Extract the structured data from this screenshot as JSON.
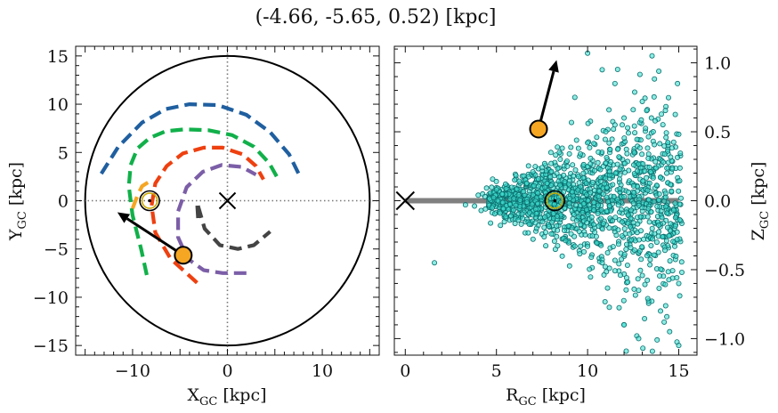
{
  "title": "(-4.66, -5.65, 0.52) [kpc]",
  "colors": {
    "arm_blue": "#1f5fa0",
    "arm_green": "#11b04a",
    "arm_red": "#ee4010",
    "arm_purple": "#7b5ea7",
    "arm_gray": "#444444",
    "arm_orange": "#f5a623",
    "star_marker": "#f5a623",
    "scatter_fill": "#40e0d0",
    "scatter_edge": "#0b6e6e",
    "plane_line": "#808080"
  },
  "chart_data": [
    {
      "type": "line",
      "panel": "left",
      "title": "",
      "xlabel": "X_GC [kpc]",
      "ylabel": "Y_GC [kpc]",
      "xlim": [
        -16,
        16
      ],
      "ylim": [
        -16,
        16
      ],
      "xticks": [
        -10,
        0,
        10
      ],
      "yticks": [
        -15,
        -10,
        -5,
        0,
        5,
        10,
        15
      ],
      "xtick_labels": [
        "−10",
        "0",
        "10"
      ],
      "ytick_labels": [
        "−15",
        "−10",
        "−5",
        "0",
        "5",
        "10",
        "15"
      ],
      "boundary_circle_radius": 15,
      "galactic_center": [
        0,
        0
      ],
      "sun_position": [
        -8.2,
        0
      ],
      "object_position": [
        -4.66,
        -5.65
      ],
      "velocity_arrow_tip": [
        -11.6,
        -1.2
      ],
      "series": [
        {
          "color_key": "arm_blue",
          "x": [
            -13.3,
            -11.5,
            -9.0,
            -6.5,
            -4.0,
            -1.0,
            2.0,
            4.5,
            6.5,
            7.6
          ],
          "y": [
            2.8,
            5.6,
            8.1,
            9.5,
            10.0,
            9.9,
            8.9,
            7.1,
            4.8,
            2.6
          ]
        },
        {
          "color_key": "arm_green",
          "x": [
            -8.5,
            -9.1,
            -10.0,
            -10.4,
            -10.2,
            -9.5,
            -8.2,
            -6.5,
            -4.5,
            -2.0,
            0.5,
            2.8,
            4.4,
            5.2
          ],
          "y": [
            -7.7,
            -5.0,
            -1.5,
            1.5,
            3.7,
            5.4,
            6.5,
            7.2,
            7.4,
            7.3,
            6.8,
            5.6,
            3.9,
            2.5
          ]
        },
        {
          "color_key": "arm_red",
          "x": [
            -3.2,
            -6.0,
            -7.6,
            -8.0,
            -7.6,
            -6.4,
            -4.7,
            -2.5,
            -0.5,
            1.6,
            3.0,
            3.8
          ],
          "y": [
            -8.5,
            -6.0,
            -3.3,
            -0.5,
            1.8,
            3.6,
            4.9,
            5.5,
            5.5,
            4.8,
            3.6,
            2.2
          ]
        },
        {
          "color_key": "arm_purple",
          "x": [
            2.0,
            -0.5,
            -2.5,
            -4.2,
            -5.2,
            -5.2,
            -4.3,
            -2.6,
            -0.6,
            1.5,
            3.0
          ],
          "y": [
            -7.5,
            -7.5,
            -7.2,
            -6.0,
            -3.8,
            -1.1,
            1.4,
            3.0,
            3.7,
            3.5,
            2.7
          ]
        },
        {
          "color_key": "arm_gray",
          "x": [
            -3.1,
            -3.2,
            -2.4,
            -0.8,
            1.1,
            2.8,
            4.5
          ],
          "y": [
            -1.8,
            -0.2,
            -2.9,
            -4.6,
            -5.0,
            -4.6,
            -3.2
          ]
        },
        {
          "color_key": "arm_orange",
          "x": [
            -10.0,
            -9.5,
            -9.0,
            -8.2
          ],
          "y": [
            -0.8,
            0.5,
            1.5,
            2.0
          ]
        }
      ]
    },
    {
      "type": "scatter",
      "panel": "right",
      "title": "",
      "xlabel": "R_GC [kpc]",
      "ylabel": "Z_GC [kpc]",
      "xlim": [
        -0.6,
        16
      ],
      "ylim": [
        -1.12,
        1.12
      ],
      "xticks": [
        0,
        5,
        10,
        15
      ],
      "yticks": [
        -1.0,
        -0.5,
        0.0,
        0.5,
        1.0
      ],
      "xtick_labels": [
        "0",
        "5",
        "10",
        "15"
      ],
      "ytick_labels": [
        "−1.0",
        "−0.5",
        "0.0",
        "0.5",
        "1.0"
      ],
      "galactic_plane_x": [
        0,
        15
      ],
      "galactic_plane_y": 0,
      "galactic_center": [
        0,
        0
      ],
      "sun_position": [
        8.2,
        0
      ],
      "object_position": [
        7.31,
        0.52
      ],
      "velocity_arrow_tip": [
        8.3,
        1.02
      ],
      "scatter_points": {
        "x": [
          1.6,
          3.3,
          4.0,
          4.4,
          5.0,
          5.2,
          5.5,
          5.8,
          6.0,
          6.2,
          6.5,
          6.8,
          7.0,
          7.2,
          7.5,
          7.7,
          8.0,
          8.3,
          8.5,
          8.8,
          9.0,
          9.3,
          9.5,
          9.8,
          10.0,
          10.2,
          10.5,
          10.8,
          11.0,
          11.2,
          11.5,
          11.8,
          12.0,
          12.2,
          12.5,
          12.8,
          13.0,
          13.3,
          13.6,
          14.0,
          14.5,
          15.0,
          10.0,
          10.8,
          11.5,
          12.0,
          12.7,
          13.5,
          9.3,
          11.9,
          14.6,
          15.0,
          14.2,
          12.8
        ],
        "y": [
          -0.45,
          -0.03,
          0.04,
          -0.06,
          0.08,
          -0.09,
          0.12,
          -0.11,
          0.15,
          -0.14,
          0.18,
          -0.17,
          0.21,
          -0.2,
          0.24,
          -0.23,
          0.27,
          -0.26,
          0.3,
          -0.29,
          0.34,
          -0.33,
          0.38,
          -0.37,
          0.42,
          -0.41,
          0.46,
          -0.45,
          0.5,
          -0.49,
          0.55,
          -0.54,
          0.6,
          -0.59,
          0.66,
          -0.65,
          0.72,
          -0.71,
          0.5,
          -0.8,
          -0.95,
          -1.05,
          1.07,
          0.95,
          0.85,
          -0.9,
          -0.98,
          0.6,
          0.75,
          0.55,
          0.07,
          -0.6,
          -0.88,
          -1.0
        ]
      }
    }
  ]
}
